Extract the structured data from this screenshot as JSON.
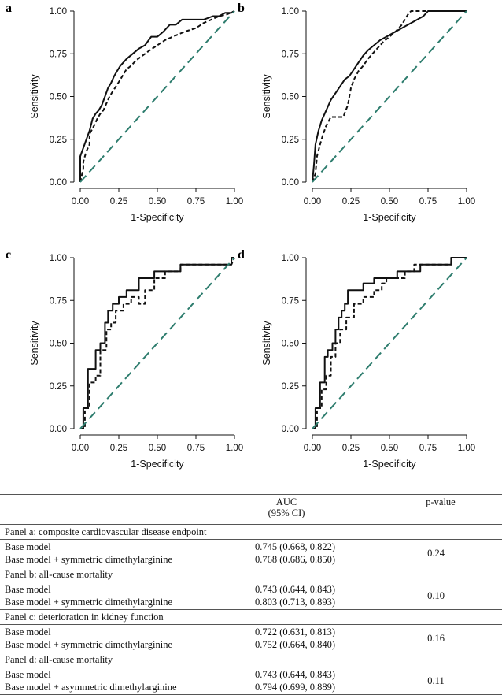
{
  "chart_data": [
    {
      "type": "line",
      "panel": "a",
      "xlabel": "1-Specificity",
      "ylabel": "Sensitivity",
      "xlim": [
        0,
        1
      ],
      "ylim": [
        0,
        1
      ],
      "ticks": [
        "0.00",
        "0.25",
        "0.50",
        "0.75",
        "1.00"
      ],
      "series": [
        {
          "name": "Base model",
          "style": "dashed",
          "x": [
            0,
            0.02,
            0.02,
            0.04,
            0.06,
            0.06,
            0.09,
            0.11,
            0.13,
            0.15,
            0.17,
            0.19,
            0.21,
            0.24,
            0.26,
            0.28,
            0.3,
            0.33,
            0.36,
            0.39,
            0.42,
            0.45,
            0.5,
            0.55,
            0.6,
            0.68,
            0.75,
            0.8,
            0.85,
            0.9,
            0.95,
            1
          ],
          "y": [
            0,
            0.08,
            0.12,
            0.18,
            0.22,
            0.28,
            0.33,
            0.37,
            0.4,
            0.42,
            0.46,
            0.5,
            0.53,
            0.57,
            0.6,
            0.63,
            0.66,
            0.68,
            0.71,
            0.73,
            0.75,
            0.77,
            0.8,
            0.83,
            0.85,
            0.88,
            0.9,
            0.93,
            0.95,
            0.97,
            0.98,
            1
          ]
        },
        {
          "name": "Base model + symmetric dimethylarginine",
          "style": "solid",
          "x": [
            0,
            0,
            0.02,
            0.04,
            0.06,
            0.08,
            0.1,
            0.12,
            0.14,
            0.16,
            0.18,
            0.2,
            0.22,
            0.24,
            0.26,
            0.3,
            0.34,
            0.38,
            0.42,
            0.46,
            0.5,
            0.54,
            0.58,
            0.62,
            0.66,
            0.7,
            0.74,
            0.8,
            0.86,
            0.9,
            0.94,
            0.98,
            1
          ],
          "y": [
            0,
            0.15,
            0.2,
            0.25,
            0.3,
            0.37,
            0.4,
            0.42,
            0.45,
            0.5,
            0.55,
            0.58,
            0.62,
            0.65,
            0.68,
            0.72,
            0.75,
            0.78,
            0.8,
            0.85,
            0.85,
            0.88,
            0.92,
            0.92,
            0.95,
            0.95,
            0.95,
            0.95,
            0.97,
            0.97,
            0.99,
            0.99,
            1
          ]
        },
        {
          "name": "Reference",
          "style": "dashed-reference",
          "x": [
            0,
            1
          ],
          "y": [
            0,
            1
          ]
        }
      ]
    },
    {
      "type": "line",
      "panel": "b",
      "xlabel": "1-Specificity",
      "ylabel": "Sensitivity",
      "xlim": [
        0,
        1
      ],
      "ylim": [
        0,
        1
      ],
      "ticks": [
        "0.00",
        "0.25",
        "0.50",
        "0.75",
        "1.00"
      ],
      "series": [
        {
          "name": "Base model",
          "style": "dashed",
          "x": [
            0,
            0.02,
            0.03,
            0.05,
            0.07,
            0.09,
            0.12,
            0.15,
            0.18,
            0.2,
            0.23,
            0.25,
            0.27,
            0.3,
            0.33,
            0.36,
            0.39,
            0.42,
            0.46,
            0.5,
            0.54,
            0.58,
            0.6,
            0.62,
            0.64,
            0.7,
            0.8,
            0.9,
            1
          ],
          "y": [
            0,
            0.05,
            0.15,
            0.22,
            0.28,
            0.33,
            0.38,
            0.38,
            0.38,
            0.38,
            0.45,
            0.55,
            0.6,
            0.65,
            0.68,
            0.72,
            0.75,
            0.78,
            0.82,
            0.85,
            0.88,
            0.92,
            0.95,
            0.98,
            1.0,
            1.0,
            1.0,
            1.0,
            1
          ]
        },
        {
          "name": "Base model + symmetric dimethylarginine",
          "style": "solid",
          "x": [
            0,
            0.01,
            0.02,
            0.04,
            0.06,
            0.08,
            0.1,
            0.12,
            0.15,
            0.18,
            0.21,
            0.24,
            0.27,
            0.3,
            0.33,
            0.36,
            0.4,
            0.44,
            0.48,
            0.52,
            0.56,
            0.6,
            0.64,
            0.68,
            0.72,
            0.75,
            0.85,
            1
          ],
          "y": [
            0,
            0.1,
            0.22,
            0.3,
            0.36,
            0.4,
            0.44,
            0.48,
            0.52,
            0.56,
            0.6,
            0.62,
            0.66,
            0.7,
            0.74,
            0.77,
            0.8,
            0.83,
            0.85,
            0.87,
            0.89,
            0.91,
            0.93,
            0.95,
            0.97,
            1.0,
            1.0,
            1
          ]
        },
        {
          "name": "Reference",
          "style": "dashed-reference",
          "x": [
            0,
            1
          ],
          "y": [
            0,
            1
          ]
        }
      ]
    },
    {
      "type": "line",
      "panel": "c",
      "xlabel": "1-Specificity",
      "ylabel": "Sensitivity",
      "xlim": [
        0,
        1
      ],
      "ylim": [
        0,
        1
      ],
      "ticks": [
        "0.00",
        "0.25",
        "0.50",
        "0.75",
        "1.00"
      ],
      "series": [
        {
          "name": "Base model",
          "style": "dashed",
          "x": [
            0,
            0.03,
            0.03,
            0.06,
            0.06,
            0.1,
            0.1,
            0.13,
            0.13,
            0.17,
            0.17,
            0.2,
            0.2,
            0.23,
            0.23,
            0.28,
            0.28,
            0.33,
            0.33,
            0.38,
            0.38,
            0.42,
            0.42,
            0.48,
            0.48,
            0.55,
            0.55,
            0.65,
            0.65,
            0.98,
            1
          ],
          "y": [
            0,
            0,
            0.12,
            0.12,
            0.27,
            0.27,
            0.31,
            0.31,
            0.46,
            0.46,
            0.58,
            0.58,
            0.62,
            0.62,
            0.69,
            0.69,
            0.73,
            0.73,
            0.77,
            0.77,
            0.73,
            0.73,
            0.81,
            0.81,
            0.88,
            0.88,
            0.92,
            0.92,
            0.96,
            0.96,
            1
          ]
        },
        {
          "name": "Base model + symmetric dimethylarginine",
          "style": "solid",
          "x": [
            0,
            0.02,
            0.02,
            0.05,
            0.05,
            0.1,
            0.1,
            0.13,
            0.13,
            0.16,
            0.16,
            0.18,
            0.18,
            0.21,
            0.21,
            0.25,
            0.25,
            0.3,
            0.3,
            0.38,
            0.38,
            0.43,
            0.43,
            0.48,
            0.48,
            0.65,
            0.65,
            0.98,
            0.98,
            1
          ],
          "y": [
            0,
            0,
            0.12,
            0.12,
            0.35,
            0.35,
            0.46,
            0.46,
            0.5,
            0.5,
            0.62,
            0.62,
            0.69,
            0.69,
            0.73,
            0.73,
            0.77,
            0.77,
            0.81,
            0.81,
            0.88,
            0.88,
            0.88,
            0.88,
            0.92,
            0.92,
            0.96,
            0.96,
            1.0,
            1
          ]
        },
        {
          "name": "Reference",
          "style": "dashed-reference",
          "x": [
            0,
            1
          ],
          "y": [
            0,
            1
          ]
        }
      ]
    },
    {
      "type": "line",
      "panel": "d",
      "xlabel": "1-Specificity",
      "ylabel": "Sensitivity",
      "xlim": [
        0,
        1
      ],
      "ylim": [
        0,
        1
      ],
      "ticks": [
        "0.00",
        "0.25",
        "0.50",
        "0.75",
        "1.00"
      ],
      "series": [
        {
          "name": "Base model",
          "style": "dashed",
          "x": [
            0,
            0.03,
            0.03,
            0.06,
            0.06,
            0.09,
            0.09,
            0.12,
            0.12,
            0.15,
            0.15,
            0.18,
            0.18,
            0.22,
            0.22,
            0.27,
            0.27,
            0.33,
            0.33,
            0.4,
            0.4,
            0.45,
            0.45,
            0.48,
            0.48,
            0.6,
            0.6,
            0.66,
            0.66,
            0.9,
            0.9,
            1
          ],
          "y": [
            0,
            0,
            0.12,
            0.12,
            0.23,
            0.23,
            0.31,
            0.31,
            0.42,
            0.42,
            0.5,
            0.5,
            0.58,
            0.58,
            0.65,
            0.65,
            0.73,
            0.73,
            0.77,
            0.77,
            0.81,
            0.81,
            0.85,
            0.85,
            0.88,
            0.88,
            0.92,
            0.92,
            0.96,
            0.96,
            1.0,
            1
          ]
        },
        {
          "name": "Base model + asymmetric dimethylarginine",
          "style": "solid",
          "x": [
            0,
            0.02,
            0.02,
            0.05,
            0.05,
            0.08,
            0.08,
            0.1,
            0.1,
            0.13,
            0.13,
            0.15,
            0.15,
            0.17,
            0.17,
            0.19,
            0.19,
            0.21,
            0.21,
            0.23,
            0.23,
            0.33,
            0.33,
            0.4,
            0.4,
            0.5,
            0.5,
            0.55,
            0.55,
            0.7,
            0.7,
            0.9,
            0.9,
            1
          ],
          "y": [
            0,
            0,
            0.12,
            0.12,
            0.27,
            0.27,
            0.42,
            0.42,
            0.46,
            0.46,
            0.5,
            0.5,
            0.58,
            0.58,
            0.65,
            0.65,
            0.69,
            0.69,
            0.73,
            0.73,
            0.81,
            0.81,
            0.85,
            0.85,
            0.88,
            0.88,
            0.88,
            0.88,
            0.92,
            0.92,
            0.96,
            0.96,
            1.0,
            1
          ]
        },
        {
          "name": "Reference",
          "style": "dashed-reference",
          "x": [
            0,
            1
          ],
          "y": [
            0,
            1
          ]
        }
      ]
    }
  ],
  "table": {
    "header": {
      "auc_line1": "AUC",
      "auc_line2": "(95% CI)",
      "p_value": "p-value"
    },
    "sections": [
      {
        "title": "Panel a: composite cardiovascular disease endpoint",
        "rows": [
          {
            "model": "Base model",
            "auc": "0.745 (0.668, 0.822)"
          },
          {
            "model": "Base model + symmetric dimethylarginine",
            "auc": "0.768 (0.686, 0.850)"
          }
        ],
        "p_value": "0.24"
      },
      {
        "title": "Panel b: all-cause mortality",
        "rows": [
          {
            "model": "Base model",
            "auc": "0.743 (0.644, 0.843)"
          },
          {
            "model": "Base model + symmetric dimethylarginine",
            "auc": "0.803 (0.713, 0.893)"
          }
        ],
        "p_value": "0.10"
      },
      {
        "title": "Panel c: deterioration in kidney function",
        "rows": [
          {
            "model": "Base model",
            "auc": "0.722 (0.631, 0.813)"
          },
          {
            "model": "Base model + symmetric dimethylarginine",
            "auc": "0.752 (0.664, 0.840)"
          }
        ],
        "p_value": "0.16"
      },
      {
        "title": "Panel d: all-cause mortality",
        "rows": [
          {
            "model": "Base model",
            "auc": "0.743 (0.644, 0.843)"
          },
          {
            "model": "Base model + asymmetric dimethylarginine",
            "auc": "0.794 (0.699, 0.889)"
          }
        ],
        "p_value": "0.11"
      }
    ]
  },
  "colors": {
    "curve": "#111111",
    "reference": "#2e7d6e",
    "rule": "#555555"
  }
}
